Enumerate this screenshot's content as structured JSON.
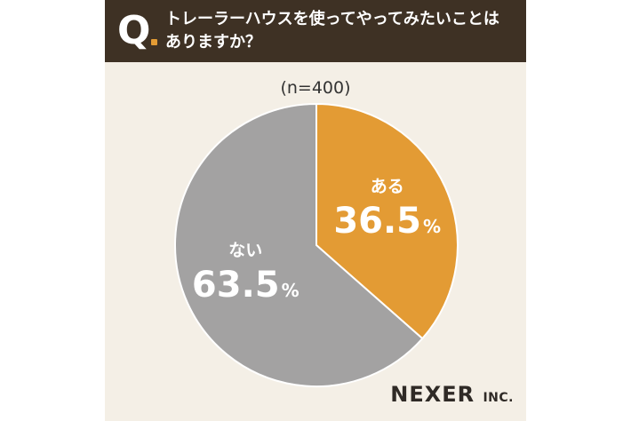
{
  "question": {
    "mark": "Q",
    "text": "トレーラーハウスを使ってやってみたいことは\nありますか？"
  },
  "sample_label": "(n=400)",
  "brand": {
    "name": "NEXER",
    "suffix": "INC."
  },
  "colors": {
    "header_bg": "#3e3124",
    "accent": "#e39b34",
    "gray": "#a3a2a2",
    "card_bg": "#f4efe6"
  },
  "chart_data": {
    "type": "pie",
    "slices": [
      {
        "label": "ある",
        "value": 36.5,
        "display": "36.5",
        "unit": "%",
        "color": "#e39b34"
      },
      {
        "label": "ない",
        "value": 63.5,
        "display": "63.5",
        "unit": "%",
        "color": "#a3a2a2"
      }
    ],
    "start": "top",
    "direction": "clockwise"
  }
}
